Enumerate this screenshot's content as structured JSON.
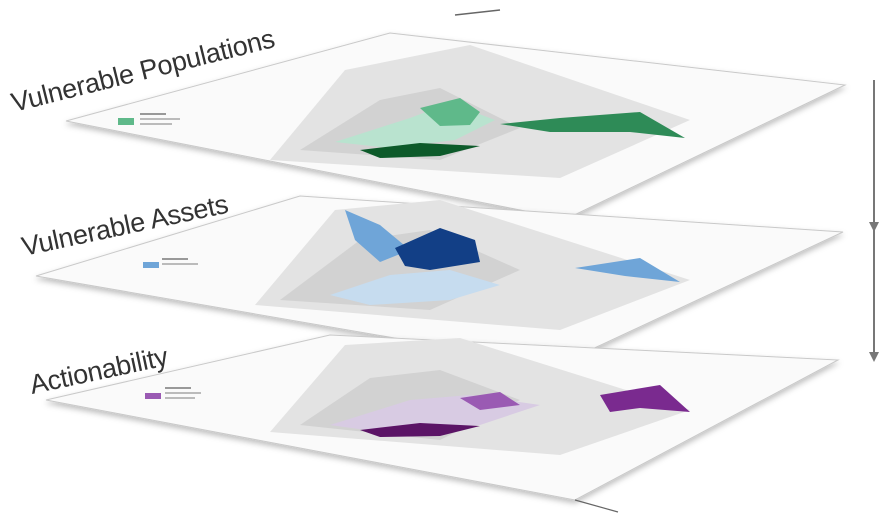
{
  "layers": [
    {
      "label": "Vulnerable Populations",
      "accent": "#1f7a3e",
      "light": "#b9e3cf",
      "mid": "#5fb98a",
      "dark": "#0d5a2a"
    },
    {
      "label": "Vulnerable Assets",
      "accent": "#1f4f9a",
      "light": "#c6dcef",
      "mid": "#6fa5d8",
      "dark": "#123f86"
    },
    {
      "label": "Actionability",
      "accent": "#6a1f7a",
      "light": "#d8cbe3",
      "mid": "#9a5ab3",
      "dark": "#5b1466"
    }
  ]
}
